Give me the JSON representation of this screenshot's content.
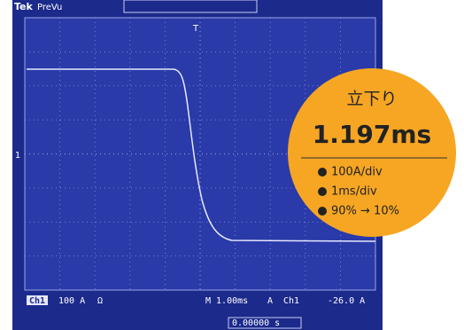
{
  "scope": {
    "brand": "Tek",
    "mode": "PreVu",
    "trigger_marker": "T",
    "channel_marker": "1",
    "status": {
      "channel": "Ch1",
      "scale": "100 A",
      "coupling": "Ω",
      "timebase": "M 1.00ms",
      "trigger_mode": "A",
      "trigger_source": "Ch1",
      "trigger_level": "-26.0 A",
      "position": "0.00000 s"
    }
  },
  "callout": {
    "title": "立下り",
    "value": "1.197ms",
    "notes": [
      "100A/div",
      "1ms/div",
      "90% → 10%"
    ]
  }
}
